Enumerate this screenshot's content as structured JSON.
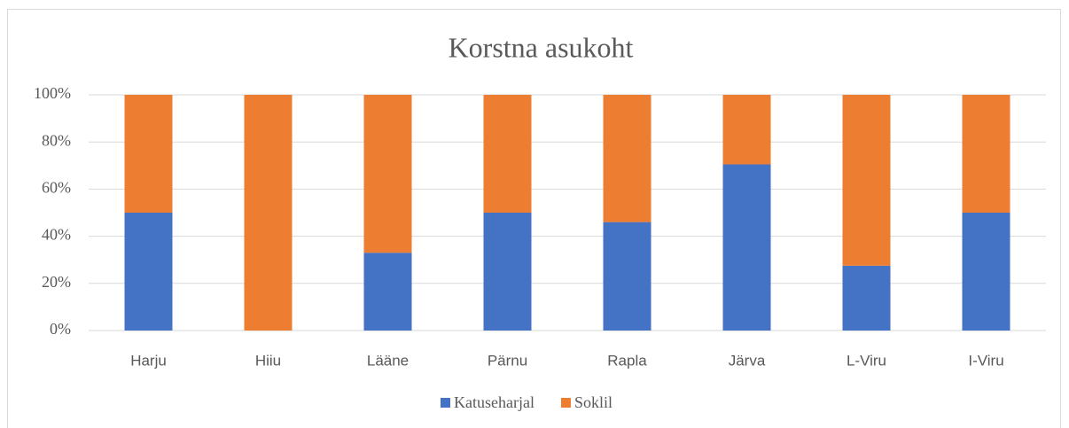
{
  "chart_data": {
    "type": "stacked_bar",
    "title": "Korstna asukoht",
    "categories": [
      "Harju",
      "Hiiu",
      "Lääne",
      "Pärnu",
      "Rapla",
      "Järva",
      "L-Viru",
      "I-Viru"
    ],
    "series": [
      {
        "name": "Katuseharjal",
        "color": "#4472c4",
        "values": [
          50,
          0,
          33,
          50,
          46,
          70.5,
          27.5,
          50
        ]
      },
      {
        "name": "Soklil",
        "color": "#ed7d31",
        "values": [
          50,
          100,
          67,
          50,
          54,
          29.5,
          72.5,
          50
        ]
      }
    ],
    "ylim": [
      0,
      100
    ],
    "yticks": [
      {
        "value": 0,
        "label": "0%"
      },
      {
        "value": 20,
        "label": "20%"
      },
      {
        "value": 40,
        "label": "40%"
      },
      {
        "value": 60,
        "label": "60%"
      },
      {
        "value": 80,
        "label": "80%"
      },
      {
        "value": 100,
        "label": "100%"
      }
    ],
    "grid": true,
    "legend": "bottom"
  }
}
